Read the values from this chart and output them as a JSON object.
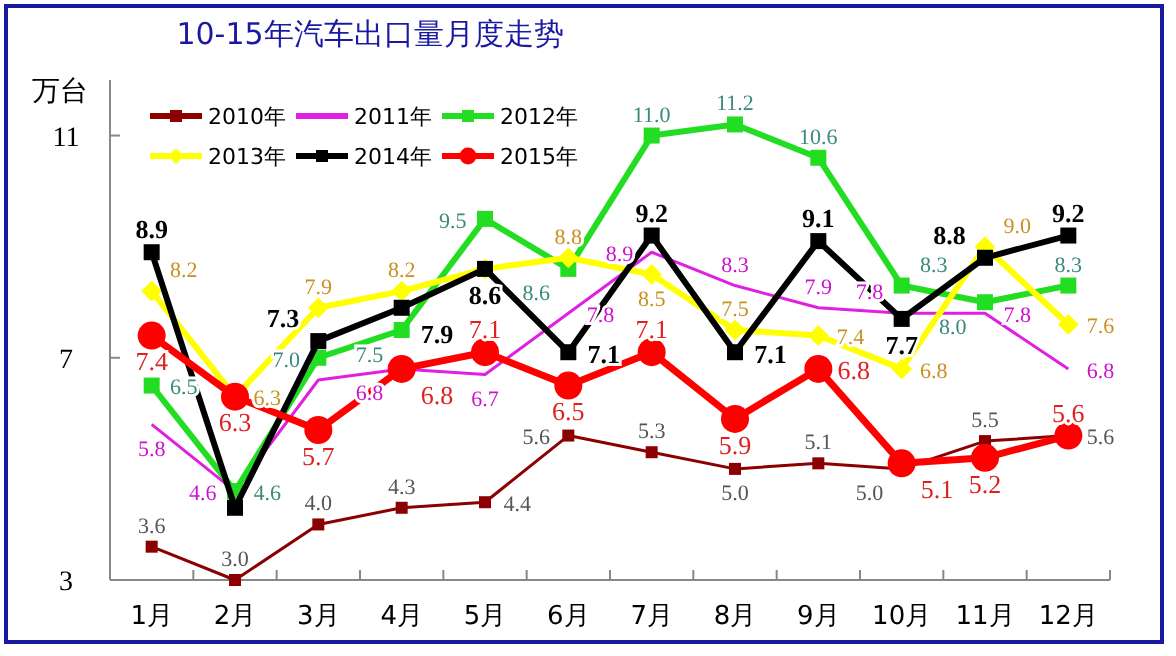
{
  "chart_data": {
    "type": "line",
    "title": "10-15年汽车出口量月度走势",
    "ylabel": "万台",
    "categories": [
      "1月",
      "2月",
      "3月",
      "4月",
      "5月",
      "6月",
      "7月",
      "8月",
      "9月",
      "10月",
      "11月",
      "12月"
    ],
    "series": [
      {
        "name": "2010年",
        "color": "#8b0000",
        "marker": "square",
        "values": [
          3.6,
          3.0,
          4.0,
          4.3,
          4.4,
          5.6,
          5.3,
          5.0,
          5.1,
          5.0,
          5.5,
          5.6
        ],
        "value_labels": [
          "3.6",
          "3.0",
          "4.0",
          "4.3",
          "4.4",
          "5.6",
          "5.3",
          "5.0",
          "5.1",
          "5.0",
          "5.5",
          "5.6"
        ]
      },
      {
        "name": "2011年",
        "color": "#e020e0",
        "marker": "none",
        "values": [
          5.8,
          4.6,
          6.6,
          6.8,
          6.7,
          7.8,
          8.9,
          8.3,
          7.9,
          7.8,
          7.8,
          6.8
        ],
        "value_labels": [
          "5.8",
          "4.6",
          null,
          "6.8",
          "6.7",
          "7.8",
          "8.9",
          "8.3",
          "7.9",
          "7.8",
          "7.8",
          "6.8"
        ]
      },
      {
        "name": "2012年",
        "color": "#22dd22",
        "marker": "square",
        "values": [
          6.5,
          4.6,
          7.0,
          7.5,
          9.5,
          8.6,
          11.0,
          11.2,
          10.6,
          8.3,
          8.0,
          8.3
        ],
        "value_labels": [
          "6.5",
          "4.6",
          "7.0",
          "7.5",
          "9.5",
          "8.6",
          "11.0",
          "11.2",
          "10.6",
          "8.3",
          "8.0",
          "8.3"
        ]
      },
      {
        "name": "2013年",
        "color": "#ffff00",
        "marker": "diamond",
        "values": [
          8.2,
          6.3,
          7.9,
          8.2,
          8.6,
          8.8,
          8.5,
          7.5,
          7.4,
          6.8,
          9.0,
          7.6
        ],
        "value_labels": [
          "8.2",
          "6.3",
          "7.9",
          "8.2",
          null,
          "8.8",
          "8.5",
          "7.5",
          "7.4",
          "6.8",
          "9.0",
          "7.6"
        ]
      },
      {
        "name": "2014年",
        "color": "#000000",
        "marker": "square",
        "values": [
          8.9,
          4.3,
          7.3,
          7.9,
          8.6,
          7.1,
          9.2,
          7.1,
          9.1,
          7.7,
          8.8,
          9.2
        ],
        "value_labels": [
          "8.9",
          null,
          "7.3",
          "7.9",
          "8.6",
          "7.1",
          "9.2",
          "7.1",
          "9.1",
          "7.7",
          "8.8",
          "9.2"
        ]
      },
      {
        "name": "2015年",
        "color": "#ff0000",
        "marker": "circle",
        "values": [
          7.4,
          6.3,
          5.7,
          6.8,
          7.1,
          6.5,
          7.1,
          5.9,
          6.8,
          5.1,
          5.2,
          5.6
        ],
        "value_labels": [
          "7.4",
          "6.3",
          "5.7",
          "6.8",
          "7.1",
          "6.5",
          "7.1",
          "5.9",
          "6.8",
          "5.1",
          "5.2",
          "5.6"
        ]
      }
    ],
    "ylim": [
      3,
      12
    ],
    "yticks": [
      3,
      7,
      11
    ],
    "legend": "top left",
    "grid": false
  }
}
